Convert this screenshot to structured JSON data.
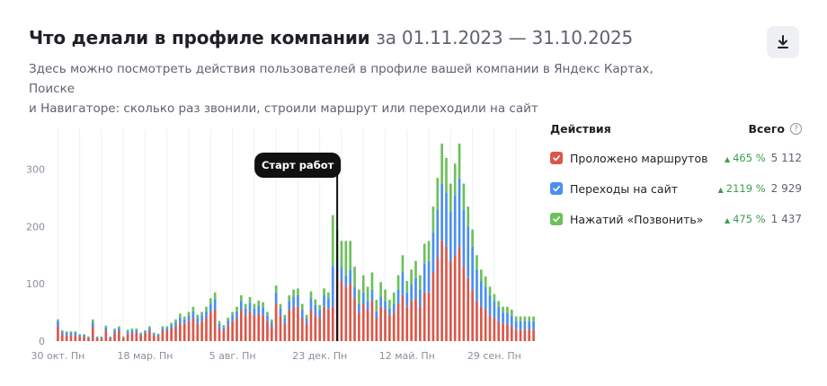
{
  "header": {
    "title": "Что делали в профиле компании",
    "period": "за 01.11.2023 — 31.10.2025",
    "subtitle_line1": "Здесь можно посмотреть действия пользователей в профиле вашей компании в Яндекс Картах, Поиске",
    "subtitle_line2": "и Навигаторе: сколько раз звонили, строили маршрут или переходили на сайт",
    "download_icon": "download-icon"
  },
  "legend": {
    "actions_header": "Действия",
    "total_header": "Всего",
    "help_icon": "question-circle-icon",
    "items": [
      {
        "label": "Проложено маршрутов",
        "delta": "465 %",
        "total": "5 112",
        "color": "#d9584a"
      },
      {
        "label": "Переходы на сайт",
        "delta": "2119 %",
        "total": "2 929",
        "color": "#4a8ff0"
      },
      {
        "label": "Нажатий «Позвонить»",
        "delta": "475 %",
        "total": "1 437",
        "color": "#6cc15a"
      }
    ]
  },
  "chart_data": {
    "type": "bar",
    "stacked": true,
    "ylim": [
      0,
      370
    ],
    "yticks": [
      0,
      100,
      200,
      300
    ],
    "grid": "vertical",
    "xtick_labels": [
      "30 окт. Пн",
      "18 мар. Пн",
      "5 авг. Пн",
      "23 дек. Пн",
      "12 май. Пн",
      "29 сен. Пн"
    ],
    "xtick_positions": [
      0,
      20,
      40,
      60,
      80,
      100
    ],
    "marker": {
      "label": "Старт работ",
      "index": 64
    },
    "series": [
      {
        "name": "Проложено маршрутов",
        "color": "#d9584a",
        "values": [
          25,
          12,
          10,
          10,
          10,
          8,
          8,
          5,
          25,
          5,
          5,
          18,
          5,
          14,
          18,
          5,
          12,
          14,
          15,
          10,
          14,
          18,
          10,
          8,
          18,
          18,
          22,
          25,
          32,
          30,
          35,
          40,
          30,
          35,
          40,
          50,
          55,
          22,
          18,
          28,
          35,
          40,
          55,
          45,
          52,
          45,
          48,
          45,
          35,
          25,
          65,
          45,
          30,
          55,
          60,
          60,
          40,
          30,
          55,
          45,
          40,
          60,
          55,
          60,
          120,
          105,
          95,
          100,
          75,
          50,
          65,
          55,
          70,
          40,
          60,
          55,
          45,
          50,
          65,
          80,
          60,
          70,
          75,
          60,
          85,
          85,
          120,
          145,
          175,
          165,
          140,
          150,
          165,
          130,
          110,
          90,
          70,
          60,
          55,
          45,
          40,
          35,
          30,
          30,
          25,
          20,
          20,
          20,
          20,
          20
        ]
      },
      {
        "name": "Переходы на сайт",
        "color": "#4a8ff0",
        "values": [
          10,
          5,
          5,
          5,
          5,
          3,
          3,
          2,
          8,
          2,
          2,
          6,
          2,
          5,
          5,
          2,
          5,
          5,
          4,
          3,
          3,
          5,
          3,
          3,
          5,
          5,
          6,
          8,
          10,
          8,
          10,
          12,
          10,
          10,
          12,
          15,
          18,
          8,
          6,
          8,
          10,
          12,
          15,
          12,
          15,
          12,
          14,
          14,
          10,
          8,
          20,
          12,
          10,
          15,
          18,
          20,
          15,
          10,
          20,
          18,
          15,
          20,
          20,
          70,
          25,
          25,
          20,
          25,
          20,
          15,
          20,
          15,
          20,
          12,
          18,
          15,
          12,
          15,
          25,
          40,
          25,
          30,
          35,
          30,
          50,
          55,
          70,
          85,
          100,
          95,
          85,
          105,
          120,
          100,
          90,
          75,
          55,
          45,
          40,
          35,
          30,
          25,
          20,
          20,
          20,
          15,
          15,
          15,
          15,
          15
        ]
      },
      {
        "name": "Нажатий «Позвонить»",
        "color": "#6cc15a",
        "values": [
          3,
          2,
          2,
          2,
          2,
          1,
          1,
          1,
          5,
          1,
          1,
          3,
          1,
          3,
          3,
          1,
          3,
          3,
          3,
          2,
          2,
          3,
          2,
          2,
          3,
          3,
          4,
          5,
          6,
          5,
          6,
          8,
          6,
          6,
          8,
          10,
          12,
          5,
          4,
          5,
          6,
          8,
          10,
          8,
          10,
          8,
          9,
          9,
          6,
          5,
          12,
          8,
          6,
          10,
          12,
          12,
          10,
          6,
          12,
          10,
          8,
          12,
          10,
          90,
          50,
          45,
          60,
          50,
          35,
          25,
          30,
          25,
          30,
          20,
          25,
          20,
          15,
          20,
          25,
          30,
          20,
          25,
          30,
          25,
          35,
          35,
          45,
          55,
          70,
          60,
          50,
          55,
          60,
          45,
          35,
          30,
          25,
          20,
          18,
          15,
          12,
          10,
          10,
          10,
          10,
          8,
          8,
          8,
          8,
          8
        ]
      }
    ]
  }
}
